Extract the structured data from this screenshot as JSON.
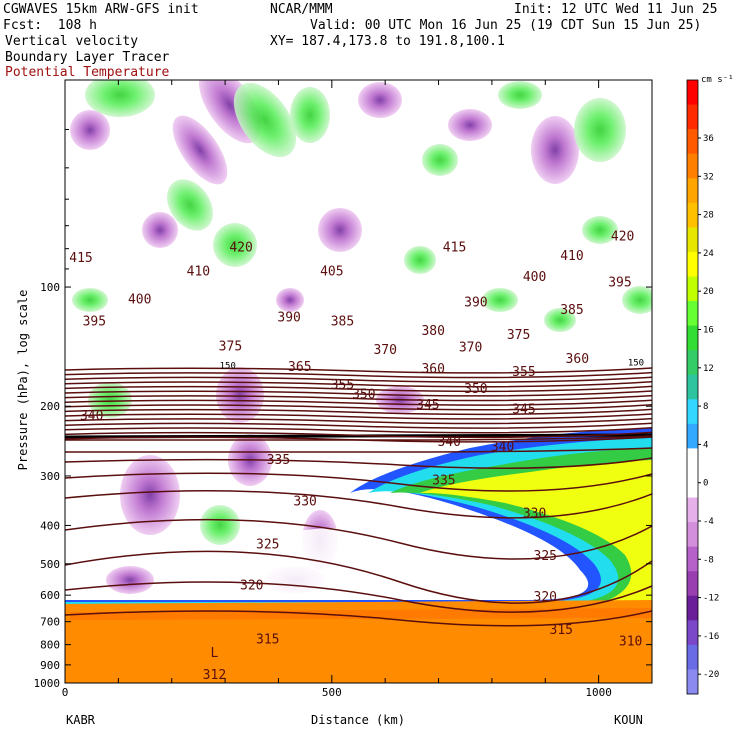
{
  "header": {
    "model": "CGWAVES 15km ARW-GFS init",
    "org": "NCAR/MMM",
    "init": "Init: 12 UTC Wed 11 Jun 25",
    "fcst": "Fcst:  108 h",
    "valid": "Valid: 00 UTC Mon 16 Jun 25 (19 CDT Sun 15 Jun 25)",
    "field1": "Vertical velocity",
    "xy": "XY= 187.4,173.8 to 191.8,100.1",
    "field2": "Boundary Layer Tracer",
    "field3": "Potential Temperature"
  },
  "chart_data": {
    "type": "heatmap",
    "xlabel": "Distance (km)",
    "ylabel": "Pressure (hPa), log scale",
    "xlim": [
      0,
      1100
    ],
    "x_ticks": [
      0,
      500,
      1000
    ],
    "ylim": [
      1000,
      30
    ],
    "y_ticks": [
      100,
      200,
      300,
      400,
      500,
      600,
      700,
      800,
      900,
      1000
    ],
    "left_station": "KABR",
    "right_station": "KOUN",
    "colorbar": {
      "unit": "cm s⁻¹",
      "levels": [
        36,
        32,
        28,
        24,
        20,
        16,
        12,
        8,
        4,
        0,
        -4,
        -8,
        -12,
        -16,
        -20
      ],
      "colors": [
        "#ff0000",
        "#ff2a00",
        "#ff5a00",
        "#ff8000",
        "#ffa500",
        "#ffc000",
        "#e6e600",
        "#ffff00",
        "#bfff00",
        "#66ff33",
        "#33dd33",
        "#33cc66",
        "#2ec4a0",
        "#33d6ff",
        "#33aaff",
        "#ffffff",
        "#ffffff",
        "#e6b0ea",
        "#d48fdc",
        "#b561c9",
        "#9a3fb0",
        "#6b1f99",
        "#7a48c8",
        "#6a6ce6",
        "#8a8af0"
      ]
    },
    "theta_labels": [
      {
        "v": "415",
        "x": 30,
        "p": 85
      },
      {
        "v": "410",
        "x": 250,
        "p": 92
      },
      {
        "v": "420",
        "x": 330,
        "p": 80
      },
      {
        "v": "405",
        "x": 500,
        "p": 92
      },
      {
        "v": "415",
        "x": 730,
        "p": 80
      },
      {
        "v": "410",
        "x": 950,
        "p": 84
      },
      {
        "v": "420",
        "x": 1045,
        "p": 75
      },
      {
        "v": "400",
        "x": 140,
        "p": 108
      },
      {
        "v": "395",
        "x": 55,
        "p": 123
      },
      {
        "v": "390",
        "x": 420,
        "p": 120
      },
      {
        "v": "385",
        "x": 520,
        "p": 123
      },
      {
        "v": "400",
        "x": 880,
        "p": 95
      },
      {
        "v": "395",
        "x": 1040,
        "p": 98
      },
      {
        "v": "390",
        "x": 770,
        "p": 110
      },
      {
        "v": "385",
        "x": 950,
        "p": 115
      },
      {
        "v": "375",
        "x": 310,
        "p": 142
      },
      {
        "v": "380",
        "x": 690,
        "p": 130
      },
      {
        "v": "375",
        "x": 850,
        "p": 133
      },
      {
        "v": "370",
        "x": 600,
        "p": 145
      },
      {
        "v": "370",
        "x": 760,
        "p": 143
      },
      {
        "v": "365",
        "x": 440,
        "p": 160
      },
      {
        "v": "360",
        "x": 690,
        "p": 162
      },
      {
        "v": "360",
        "x": 960,
        "p": 153
      },
      {
        "v": "355",
        "x": 520,
        "p": 178
      },
      {
        "v": "355",
        "x": 860,
        "p": 165
      },
      {
        "v": "350",
        "x": 560,
        "p": 188
      },
      {
        "v": "350",
        "x": 770,
        "p": 182
      },
      {
        "v": "345",
        "x": 680,
        "p": 200
      },
      {
        "v": "345",
        "x": 860,
        "p": 205
      },
      {
        "v": "340",
        "x": 50,
        "p": 213
      },
      {
        "v": "340",
        "x": 720,
        "p": 248
      },
      {
        "v": "340",
        "x": 820,
        "p": 255
      },
      {
        "v": "335",
        "x": 400,
        "p": 275
      },
      {
        "v": "335",
        "x": 710,
        "p": 310
      },
      {
        "v": "330",
        "x": 450,
        "p": 350
      },
      {
        "v": "330",
        "x": 880,
        "p": 375
      },
      {
        "v": "325",
        "x": 380,
        "p": 450
      },
      {
        "v": "325",
        "x": 900,
        "p": 480
      },
      {
        "v": "320",
        "x": 350,
        "p": 570
      },
      {
        "v": "320",
        "x": 900,
        "p": 610
      },
      {
        "v": "315",
        "x": 380,
        "p": 780
      },
      {
        "v": "315",
        "x": 930,
        "p": 740
      },
      {
        "v": "310",
        "x": 1060,
        "p": 790
      },
      {
        "v": "312",
        "x": 280,
        "p": 960
      }
    ],
    "tracer_label": "150",
    "low_label": "L"
  }
}
